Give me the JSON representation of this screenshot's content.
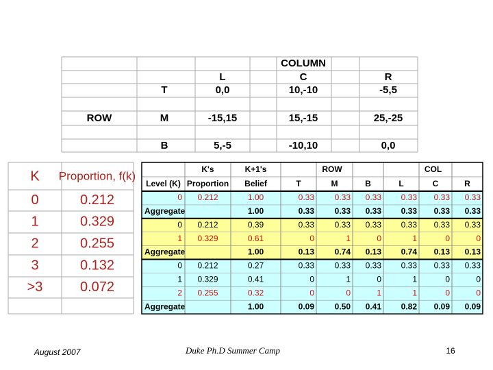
{
  "top_table": {
    "header": "COLUMN",
    "columns": [
      "L",
      "C",
      "R"
    ],
    "row_label": "ROW",
    "rows": [
      {
        "label": "T",
        "cells": [
          "0,0",
          "10,-10",
          "-5,5"
        ]
      },
      {
        "label": "M",
        "cells": [
          "-15,15",
          "15,-15",
          "25,-25"
        ]
      },
      {
        "label": "B",
        "cells": [
          "5,-5",
          "-10,10",
          "0,0"
        ]
      }
    ]
  },
  "left_table": {
    "headers": [
      "K",
      "Proportion, f(k)"
    ],
    "rows": [
      [
        "0",
        "0.212"
      ],
      [
        "1",
        "0.329"
      ],
      [
        "2",
        "0.255"
      ],
      [
        "3",
        "0.132"
      ],
      [
        ">3",
        "0.072"
      ]
    ]
  },
  "right_table": {
    "group_headers": [
      "K's",
      "K+1's",
      "ROW",
      "COL"
    ],
    "column_headers": [
      "Level (K)",
      "Proportion",
      "Belief",
      "T",
      "M",
      "B",
      "L",
      "C",
      "R"
    ],
    "sections": [
      {
        "fill": "#ccffff",
        "rows": [
          [
            "0",
            "0.212",
            "1.00",
            "0.33",
            "0.33",
            "0.33",
            "0.33",
            "0.33",
            "0.33"
          ],
          [
            "Aggregate",
            null,
            "1.00",
            "0.33",
            "0.33",
            "0.33",
            "0.33",
            "0.33",
            "0.33"
          ]
        ]
      },
      {
        "fill": "#ffff99",
        "rows": [
          [
            "0",
            "0.212",
            "0.39",
            "0.33",
            "0.33",
            "0.33",
            "0.33",
            "0.33",
            "0.33"
          ],
          [
            "1",
            "0.329",
            "0.61",
            "0",
            "1",
            "0",
            "1",
            "0",
            "0"
          ],
          [
            "Aggregate",
            null,
            "1.00",
            "0.13",
            "0.74",
            "0.13",
            "0.74",
            "0.13",
            "0.13"
          ]
        ]
      },
      {
        "fill": "#ccffff",
        "rows": [
          [
            "0",
            "0.212",
            "0.27",
            "0.33",
            "0.33",
            "0.33",
            "0.33",
            "0.33",
            "0.33"
          ],
          [
            "1",
            "0.329",
            "0.41",
            "0",
            "1",
            "0",
            "1",
            "0",
            "0"
          ],
          [
            "2",
            "0.255",
            "0.32",
            "0",
            "0",
            "1",
            "1",
            "0",
            "0"
          ],
          [
            "Aggregate",
            null,
            "1.00",
            "0.09",
            "0.50",
            "0.41",
            "0.82",
            "0.09",
            "0.09"
          ]
        ]
      }
    ]
  },
  "footer": {
    "date": "August 2007",
    "event": "Duke Ph.D Summer Camp",
    "page": "16"
  }
}
